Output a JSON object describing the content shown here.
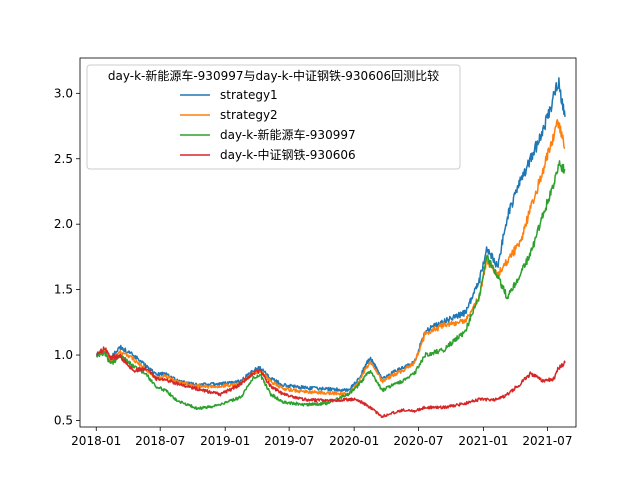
{
  "chart_data": {
    "type": "line",
    "title": "",
    "xlabel": "",
    "ylabel": "",
    "xlim": [
      "2017-11-16",
      "2021-09-20"
    ],
    "ylim": [
      0.45,
      3.27
    ],
    "x_ticks": [
      "2018-01",
      "2018-07",
      "2019-01",
      "2019-07",
      "2020-01",
      "2020-07",
      "2021-01",
      "2021-07"
    ],
    "y_ticks": [
      "0.5",
      "1.0",
      "1.5",
      "2.0",
      "2.5",
      "3.0"
    ],
    "grid": false,
    "legend": {
      "title": "day-k-新能源车-930997与day-k-中证钢铁-930606回测比较",
      "placement": "upper-left",
      "entries": [
        "strategy1",
        "strategy2",
        "day-k-新能源车-930997",
        "day-k-中证钢铁-930606"
      ]
    },
    "series": [
      {
        "name": "strategy1",
        "color": "#1f77b4",
        "points": [
          [
            "2018-01-02",
            1.0
          ],
          [
            "2018-01-25",
            1.04
          ],
          [
            "2018-02-10",
            0.97
          ],
          [
            "2018-03-10",
            1.06
          ],
          [
            "2018-04-15",
            1.0
          ],
          [
            "2018-05-20",
            0.92
          ],
          [
            "2018-06-20",
            0.85
          ],
          [
            "2018-07-15",
            0.86
          ],
          [
            "2018-08-20",
            0.8
          ],
          [
            "2018-10-15",
            0.77
          ],
          [
            "2018-12-20",
            0.78
          ],
          [
            "2019-02-15",
            0.8
          ],
          [
            "2019-03-20",
            0.88
          ],
          [
            "2019-04-10",
            0.9
          ],
          [
            "2019-05-10",
            0.82
          ],
          [
            "2019-06-15",
            0.77
          ],
          [
            "2019-08-15",
            0.75
          ],
          [
            "2019-10-15",
            0.74
          ],
          [
            "2019-12-15",
            0.73
          ],
          [
            "2020-01-10",
            0.8
          ],
          [
            "2020-02-15",
            0.98
          ],
          [
            "2020-03-20",
            0.82
          ],
          [
            "2020-05-15",
            0.9
          ],
          [
            "2020-06-20",
            0.95
          ],
          [
            "2020-07-20",
            1.18
          ],
          [
            "2020-09-10",
            1.26
          ],
          [
            "2020-11-10",
            1.32
          ],
          [
            "2020-12-20",
            1.56
          ],
          [
            "2021-01-10",
            1.82
          ],
          [
            "2021-02-10",
            1.68
          ],
          [
            "2021-03-10",
            2.06
          ],
          [
            "2021-04-15",
            2.32
          ],
          [
            "2021-05-15",
            2.5
          ],
          [
            "2021-06-20",
            2.72
          ],
          [
            "2021-07-20",
            2.98
          ],
          [
            "2021-08-01",
            3.1
          ],
          [
            "2021-08-20",
            2.82
          ]
        ]
      },
      {
        "name": "strategy2",
        "color": "#ff7f0e",
        "points": [
          [
            "2018-01-02",
            1.0
          ],
          [
            "2018-01-25",
            1.03
          ],
          [
            "2018-02-10",
            0.96
          ],
          [
            "2018-03-10",
            1.02
          ],
          [
            "2018-04-15",
            0.97
          ],
          [
            "2018-05-20",
            0.9
          ],
          [
            "2018-06-20",
            0.82
          ],
          [
            "2018-07-15",
            0.84
          ],
          [
            "2018-08-20",
            0.79
          ],
          [
            "2018-10-15",
            0.76
          ],
          [
            "2018-12-20",
            0.76
          ],
          [
            "2019-02-15",
            0.78
          ],
          [
            "2019-03-20",
            0.86
          ],
          [
            "2019-04-10",
            0.88
          ],
          [
            "2019-05-10",
            0.8
          ],
          [
            "2019-06-15",
            0.74
          ],
          [
            "2019-08-15",
            0.72
          ],
          [
            "2019-10-15",
            0.71
          ],
          [
            "2019-12-15",
            0.7
          ],
          [
            "2020-01-10",
            0.78
          ],
          [
            "2020-02-15",
            0.95
          ],
          [
            "2020-03-20",
            0.8
          ],
          [
            "2020-05-15",
            0.88
          ],
          [
            "2020-06-20",
            0.94
          ],
          [
            "2020-07-20",
            1.16
          ],
          [
            "2020-09-10",
            1.23
          ],
          [
            "2020-11-10",
            1.26
          ],
          [
            "2020-12-20",
            1.44
          ],
          [
            "2021-01-10",
            1.72
          ],
          [
            "2021-02-10",
            1.62
          ],
          [
            "2021-03-10",
            1.72
          ],
          [
            "2021-04-15",
            1.86
          ],
          [
            "2021-05-15",
            2.12
          ],
          [
            "2021-06-20",
            2.42
          ],
          [
            "2021-07-20",
            2.68
          ],
          [
            "2021-08-01",
            2.78
          ],
          [
            "2021-08-20",
            2.58
          ]
        ]
      },
      {
        "name": "day-k-新能源车-930997",
        "color": "#2ca02c",
        "points": [
          [
            "2018-01-02",
            1.0
          ],
          [
            "2018-01-25",
            1.02
          ],
          [
            "2018-02-10",
            0.93
          ],
          [
            "2018-03-10",
            0.99
          ],
          [
            "2018-04-15",
            0.92
          ],
          [
            "2018-05-20",
            0.86
          ],
          [
            "2018-06-20",
            0.76
          ],
          [
            "2018-07-15",
            0.73
          ],
          [
            "2018-08-20",
            0.65
          ],
          [
            "2018-10-15",
            0.59
          ],
          [
            "2018-12-20",
            0.62
          ],
          [
            "2019-02-15",
            0.68
          ],
          [
            "2019-03-20",
            0.82
          ],
          [
            "2019-04-10",
            0.85
          ],
          [
            "2019-05-10",
            0.7
          ],
          [
            "2019-06-15",
            0.64
          ],
          [
            "2019-08-15",
            0.62
          ],
          [
            "2019-10-15",
            0.63
          ],
          [
            "2019-12-15",
            0.7
          ],
          [
            "2020-01-10",
            0.76
          ],
          [
            "2020-02-15",
            0.88
          ],
          [
            "2020-03-20",
            0.73
          ],
          [
            "2020-05-15",
            0.8
          ],
          [
            "2020-06-20",
            0.86
          ],
          [
            "2020-07-20",
            1.0
          ],
          [
            "2020-09-10",
            1.04
          ],
          [
            "2020-11-10",
            1.18
          ],
          [
            "2020-12-20",
            1.45
          ],
          [
            "2021-01-10",
            1.76
          ],
          [
            "2021-02-10",
            1.6
          ],
          [
            "2021-03-10",
            1.44
          ],
          [
            "2021-04-15",
            1.62
          ],
          [
            "2021-05-15",
            1.78
          ],
          [
            "2021-06-20",
            2.08
          ],
          [
            "2021-07-20",
            2.32
          ],
          [
            "2021-08-01",
            2.46
          ],
          [
            "2021-08-20",
            2.42
          ]
        ]
      },
      {
        "name": "day-k-中证钢铁-930606",
        "color": "#d62728",
        "points": [
          [
            "2018-01-02",
            1.0
          ],
          [
            "2018-01-25",
            1.05
          ],
          [
            "2018-02-10",
            0.98
          ],
          [
            "2018-03-10",
            0.99
          ],
          [
            "2018-04-15",
            0.88
          ],
          [
            "2018-05-20",
            0.9
          ],
          [
            "2018-06-20",
            0.82
          ],
          [
            "2018-07-15",
            0.81
          ],
          [
            "2018-08-20",
            0.78
          ],
          [
            "2018-10-15",
            0.74
          ],
          [
            "2018-12-20",
            0.7
          ],
          [
            "2019-02-15",
            0.78
          ],
          [
            "2019-03-20",
            0.86
          ],
          [
            "2019-04-10",
            0.88
          ],
          [
            "2019-05-10",
            0.76
          ],
          [
            "2019-06-15",
            0.7
          ],
          [
            "2019-08-15",
            0.66
          ],
          [
            "2019-10-15",
            0.65
          ],
          [
            "2019-12-15",
            0.66
          ],
          [
            "2020-01-10",
            0.66
          ],
          [
            "2020-02-15",
            0.6
          ],
          [
            "2020-03-20",
            0.53
          ],
          [
            "2020-05-15",
            0.58
          ],
          [
            "2020-06-20",
            0.57
          ],
          [
            "2020-07-20",
            0.6
          ],
          [
            "2020-09-10",
            0.6
          ],
          [
            "2020-11-10",
            0.63
          ],
          [
            "2020-12-20",
            0.66
          ],
          [
            "2021-01-10",
            0.66
          ],
          [
            "2021-02-10",
            0.66
          ],
          [
            "2021-03-10",
            0.7
          ],
          [
            "2021-04-15",
            0.78
          ],
          [
            "2021-05-15",
            0.86
          ],
          [
            "2021-06-20",
            0.8
          ],
          [
            "2021-07-20",
            0.82
          ],
          [
            "2021-08-01",
            0.9
          ],
          [
            "2021-08-20",
            0.94
          ]
        ]
      }
    ]
  }
}
